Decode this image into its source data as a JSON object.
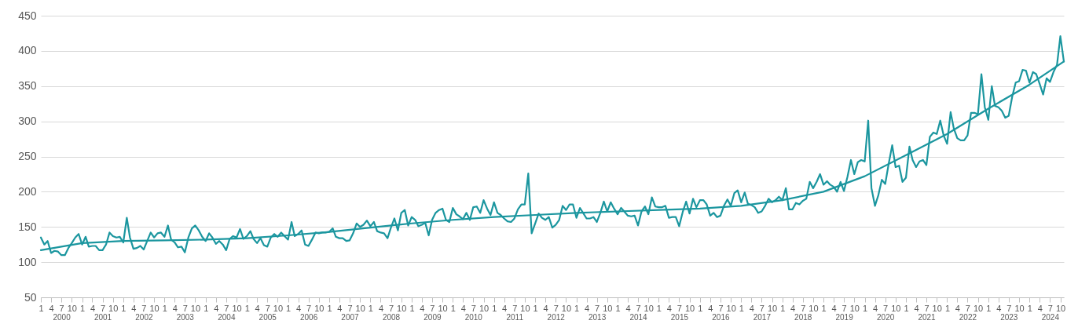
{
  "chart_data": {
    "type": "line",
    "x": [
      "2000-01",
      "2000-02",
      "2000-03",
      "2000-04",
      "2000-05",
      "2000-06",
      "2000-07",
      "2000-08",
      "2000-09",
      "2000-10",
      "2000-11",
      "2000-12",
      "2001-01",
      "2001-02",
      "2001-03",
      "2001-04",
      "2001-05",
      "2001-06",
      "2001-07",
      "2001-08",
      "2001-09",
      "2001-10",
      "2001-11",
      "2001-12",
      "2002-01",
      "2002-02",
      "2002-03",
      "2002-04",
      "2002-05",
      "2002-06",
      "2002-07",
      "2002-08",
      "2002-09",
      "2002-10",
      "2002-11",
      "2002-12",
      "2003-01",
      "2003-02",
      "2003-03",
      "2003-04",
      "2003-05",
      "2003-06",
      "2003-07",
      "2003-08",
      "2003-09",
      "2003-10",
      "2003-11",
      "2003-12",
      "2004-01",
      "2004-02",
      "2004-03",
      "2004-04",
      "2004-05",
      "2004-06",
      "2004-07",
      "2004-08",
      "2004-09",
      "2004-10",
      "2004-11",
      "2004-12",
      "2005-01",
      "2005-02",
      "2005-03",
      "2005-04",
      "2005-05",
      "2005-06",
      "2005-07",
      "2005-08",
      "2005-09",
      "2005-10",
      "2005-11",
      "2005-12",
      "2006-01",
      "2006-02",
      "2006-03",
      "2006-04",
      "2006-05",
      "2006-06",
      "2006-07",
      "2006-08",
      "2006-09",
      "2006-10",
      "2006-11",
      "2006-12",
      "2007-01",
      "2007-02",
      "2007-03",
      "2007-04",
      "2007-05",
      "2007-06",
      "2007-07",
      "2007-08",
      "2007-09",
      "2007-10",
      "2007-11",
      "2007-12",
      "2008-01",
      "2008-02",
      "2008-03",
      "2008-04",
      "2008-05",
      "2008-06",
      "2008-07",
      "2008-08",
      "2008-09",
      "2008-10",
      "2008-11",
      "2008-12",
      "2009-01",
      "2009-02",
      "2009-03",
      "2009-04",
      "2009-05",
      "2009-06",
      "2009-07",
      "2009-08",
      "2009-09",
      "2009-10",
      "2009-11",
      "2009-12",
      "2010-01",
      "2010-02",
      "2010-03",
      "2010-04",
      "2010-05",
      "2010-06",
      "2010-07",
      "2010-08",
      "2010-09",
      "2010-10",
      "2010-11",
      "2010-12",
      "2011-01",
      "2011-02",
      "2011-03",
      "2011-04",
      "2011-05",
      "2011-06",
      "2011-07",
      "2011-08",
      "2011-09",
      "2011-10",
      "2011-11",
      "2011-12",
      "2012-01",
      "2012-02",
      "2012-03",
      "2012-04",
      "2012-05",
      "2012-06",
      "2012-07",
      "2012-08",
      "2012-09",
      "2012-10",
      "2012-11",
      "2012-12",
      "2013-01",
      "2013-02",
      "2013-03",
      "2013-04",
      "2013-05",
      "2013-06",
      "2013-07",
      "2013-08",
      "2013-09",
      "2013-10",
      "2013-11",
      "2013-12",
      "2014-01",
      "2014-02",
      "2014-03",
      "2014-04",
      "2014-05",
      "2014-06",
      "2014-07",
      "2014-08",
      "2014-09",
      "2014-10",
      "2014-11",
      "2014-12",
      "2015-01",
      "2015-02",
      "2015-03",
      "2015-04",
      "2015-05",
      "2015-06",
      "2015-07",
      "2015-08",
      "2015-09",
      "2015-10",
      "2015-11",
      "2015-12",
      "2016-01",
      "2016-02",
      "2016-03",
      "2016-04",
      "2016-05",
      "2016-06",
      "2016-07",
      "2016-08",
      "2016-09",
      "2016-10",
      "2016-11",
      "2016-12",
      "2017-01",
      "2017-02",
      "2017-03",
      "2017-04",
      "2017-05",
      "2017-06",
      "2017-07",
      "2017-08",
      "2017-09",
      "2017-10",
      "2017-11",
      "2017-12",
      "2018-01",
      "2018-02",
      "2018-03",
      "2018-04",
      "2018-05",
      "2018-06",
      "2018-07",
      "2018-08",
      "2018-09",
      "2018-10",
      "2018-11",
      "2018-12",
      "2019-01",
      "2019-02",
      "2019-03",
      "2019-04",
      "2019-05",
      "2019-06",
      "2019-07",
      "2019-08",
      "2019-09",
      "2019-10",
      "2019-11",
      "2019-12",
      "2020-01",
      "2020-02",
      "2020-03",
      "2020-04",
      "2020-05",
      "2020-06",
      "2020-07",
      "2020-08",
      "2020-09",
      "2020-10",
      "2020-11",
      "2020-12",
      "2021-01",
      "2021-02",
      "2021-03",
      "2021-04",
      "2021-05",
      "2021-06",
      "2021-07",
      "2021-08",
      "2021-09",
      "2021-10",
      "2021-11",
      "2021-12",
      "2022-01",
      "2022-02",
      "2022-03",
      "2022-04",
      "2022-05",
      "2022-06",
      "2022-07",
      "2022-08",
      "2022-09",
      "2022-10",
      "2022-11",
      "2022-12",
      "2023-01",
      "2023-02",
      "2023-03",
      "2023-04",
      "2023-05",
      "2023-06",
      "2023-07",
      "2023-08",
      "2023-09",
      "2023-10",
      "2023-11",
      "2023-12",
      "2024-01",
      "2024-02",
      "2024-03",
      "2024-04",
      "2024-05",
      "2024-06",
      "2024-07",
      "2024-08",
      "2024-09",
      "2024-10",
      "2024-11"
    ],
    "series": [
      {
        "color": "#1b969f",
        "values": [
          135,
          125,
          130,
          113,
          116,
          115,
          110,
          110,
          120,
          127,
          135,
          140,
          125,
          136,
          122,
          123,
          123,
          117,
          117,
          125,
          142,
          137,
          135,
          136,
          128,
          163,
          135,
          119,
          120,
          123,
          118,
          130,
          142,
          135,
          141,
          142,
          136,
          152,
          132,
          128,
          121,
          122,
          114,
          135,
          148,
          152,
          145,
          136,
          130,
          141,
          135,
          126,
          130,
          125,
          117,
          133,
          137,
          135,
          147,
          133,
          137,
          144,
          133,
          127,
          134,
          124,
          122,
          135,
          140,
          136,
          142,
          137,
          132,
          157,
          137,
          140,
          145,
          125,
          123,
          132,
          142,
          141,
          142,
          142,
          143,
          148,
          136,
          134,
          134,
          130,
          131,
          141,
          155,
          150,
          153,
          159,
          151,
          157,
          144,
          142,
          141,
          134,
          149,
          162,
          145,
          170,
          174,
          152,
          164,
          160,
          151,
          153,
          156,
          138,
          160,
          170,
          174,
          176,
          160,
          157,
          177,
          168,
          165,
          161,
          170,
          160,
          178,
          179,
          170,
          188,
          176,
          167,
          185,
          170,
          167,
          162,
          158,
          157,
          162,
          175,
          182,
          182,
          226,
          141,
          155,
          169,
          163,
          160,
          164,
          149,
          153,
          160,
          180,
          174,
          182,
          182,
          163,
          177,
          170,
          162,
          162,
          164,
          157,
          170,
          186,
          172,
          185,
          176,
          168,
          177,
          172,
          166,
          165,
          166,
          152,
          172,
          179,
          168,
          192,
          179,
          178,
          178,
          180,
          163,
          164,
          164,
          151,
          171,
          186,
          169,
          190,
          178,
          188,
          188,
          182,
          166,
          170,
          164,
          166,
          180,
          189,
          180,
          198,
          202,
          185,
          199,
          183,
          181,
          178,
          170,
          172,
          180,
          190,
          185,
          188,
          193,
          188,
          205,
          175,
          175,
          184,
          182,
          187,
          190,
          214,
          205,
          214,
          225,
          210,
          215,
          210,
          207,
          200,
          214,
          201,
          221,
          245,
          225,
          242,
          245,
          243,
          301,
          205,
          180,
          195,
          217,
          211,
          240,
          266,
          235,
          237,
          214,
          220,
          264,
          245,
          235,
          243,
          245,
          238,
          278,
          284,
          282,
          301,
          280,
          268,
          313,
          290,
          276,
          273,
          273,
          280,
          312,
          312,
          310,
          367,
          320,
          302,
          350,
          322,
          320,
          315,
          305,
          308,
          335,
          355,
          357,
          373,
          372,
          355,
          370,
          367,
          353,
          338,
          361,
          356,
          370,
          380,
          421,
          385
        ]
      },
      {
        "color": "#1b969f",
        "x": [
          "2000-01",
          "2001-01",
          "2002-01",
          "2003-01",
          "2004-01",
          "2005-01",
          "2006-01",
          "2007-01",
          "2008-01",
          "2009-01",
          "2010-01",
          "2011-01",
          "2012-01",
          "2013-01",
          "2014-01",
          "2015-01",
          "2016-01",
          "2017-01",
          "2018-01",
          "2019-01",
          "2020-01",
          "2021-01",
          "2022-01",
          "2023-01",
          "2024-01",
          "2024-11"
        ],
        "values": [
          117,
          127,
          130,
          131,
          132,
          134,
          138,
          143,
          149,
          155,
          160,
          164,
          167,
          170,
          172,
          174,
          176,
          180,
          188,
          200,
          222,
          252,
          282,
          318,
          352,
          385
        ]
      }
    ],
    "xlim": [
      "2000-01",
      "2024-11"
    ],
    "xticks": [
      {
        "value": "2000-01",
        "label": "1"
      },
      {
        "value": "2000-04",
        "label": "4"
      },
      {
        "value": "2000-07",
        "label": "7"
      },
      {
        "value": "2000-10",
        "label": "10"
      },
      {
        "value": "2001-01",
        "label": "1"
      },
      {
        "value": "2001-04",
        "label": "4"
      },
      {
        "value": "2001-07",
        "label": "7"
      },
      {
        "value": "2001-10",
        "label": "10"
      },
      {
        "value": "2002-01",
        "label": "1"
      },
      {
        "value": "2002-04",
        "label": "4"
      },
      {
        "value": "2002-07",
        "label": "7"
      },
      {
        "value": "2002-10",
        "label": "10"
      },
      {
        "value": "2003-01",
        "label": "1"
      },
      {
        "value": "2003-04",
        "label": "4"
      },
      {
        "value": "2003-07",
        "label": "7"
      },
      {
        "value": "2003-10",
        "label": "10"
      },
      {
        "value": "2004-01",
        "label": "1"
      },
      {
        "value": "2004-04",
        "label": "4"
      },
      {
        "value": "2004-07",
        "label": "7"
      },
      {
        "value": "2004-10",
        "label": "10"
      },
      {
        "value": "2005-01",
        "label": "1"
      },
      {
        "value": "2005-04",
        "label": "4"
      },
      {
        "value": "2005-07",
        "label": "7"
      },
      {
        "value": "2005-10",
        "label": "10"
      },
      {
        "value": "2006-01",
        "label": "1"
      },
      {
        "value": "2006-04",
        "label": "4"
      },
      {
        "value": "2006-07",
        "label": "7"
      },
      {
        "value": "2006-10",
        "label": "10"
      },
      {
        "value": "2007-01",
        "label": "1"
      },
      {
        "value": "2007-04",
        "label": "4"
      },
      {
        "value": "2007-07",
        "label": "7"
      },
      {
        "value": "2007-10",
        "label": "10"
      },
      {
        "value": "2008-01",
        "label": "1"
      },
      {
        "value": "2008-04",
        "label": "4"
      },
      {
        "value": "2008-07",
        "label": "7"
      },
      {
        "value": "2008-10",
        "label": "10"
      },
      {
        "value": "2009-01",
        "label": "1"
      },
      {
        "value": "2009-04",
        "label": "4"
      },
      {
        "value": "2009-07",
        "label": "7"
      },
      {
        "value": "2009-10",
        "label": "10"
      },
      {
        "value": "2010-01",
        "label": "1"
      },
      {
        "value": "2010-04",
        "label": "4"
      },
      {
        "value": "2010-07",
        "label": "7"
      },
      {
        "value": "2010-10",
        "label": "10"
      },
      {
        "value": "2011-01",
        "label": "1"
      },
      {
        "value": "2011-04",
        "label": "4"
      },
      {
        "value": "2011-07",
        "label": "7"
      },
      {
        "value": "2011-10",
        "label": "10"
      },
      {
        "value": "2012-01",
        "label": "1"
      },
      {
        "value": "2012-04",
        "label": "4"
      },
      {
        "value": "2012-07",
        "label": "7"
      },
      {
        "value": "2012-10",
        "label": "10"
      },
      {
        "value": "2013-01",
        "label": "1"
      },
      {
        "value": "2013-04",
        "label": "4"
      },
      {
        "value": "2013-07",
        "label": "7"
      },
      {
        "value": "2013-10",
        "label": "10"
      },
      {
        "value": "2014-01",
        "label": "1"
      },
      {
        "value": "2014-04",
        "label": "4"
      },
      {
        "value": "2014-07",
        "label": "7"
      },
      {
        "value": "2014-10",
        "label": "10"
      },
      {
        "value": "2015-01",
        "label": "1"
      },
      {
        "value": "2015-04",
        "label": "4"
      },
      {
        "value": "2015-07",
        "label": "7"
      },
      {
        "value": "2015-10",
        "label": "10"
      },
      {
        "value": "2016-01",
        "label": "1"
      },
      {
        "value": "2016-04",
        "label": "4"
      },
      {
        "value": "2016-07",
        "label": "7"
      },
      {
        "value": "2016-10",
        "label": "10"
      },
      {
        "value": "2017-01",
        "label": "1"
      },
      {
        "value": "2017-04",
        "label": "4"
      },
      {
        "value": "2017-07",
        "label": "7"
      },
      {
        "value": "2017-10",
        "label": "10"
      },
      {
        "value": "2018-01",
        "label": "1"
      },
      {
        "value": "2018-04",
        "label": "4"
      },
      {
        "value": "2018-07",
        "label": "7"
      },
      {
        "value": "2018-10",
        "label": "10"
      },
      {
        "value": "2019-01",
        "label": "1"
      },
      {
        "value": "2019-04",
        "label": "4"
      },
      {
        "value": "2019-07",
        "label": "7"
      },
      {
        "value": "2019-10",
        "label": "10"
      },
      {
        "value": "2020-01",
        "label": "1"
      },
      {
        "value": "2020-04",
        "label": "4"
      },
      {
        "value": "2020-07",
        "label": "7"
      },
      {
        "value": "2020-10",
        "label": "10"
      },
      {
        "value": "2021-01",
        "label": "1"
      },
      {
        "value": "2021-04",
        "label": "4"
      },
      {
        "value": "2021-07",
        "label": "7"
      },
      {
        "value": "2021-10",
        "label": "10"
      },
      {
        "value": "2022-01",
        "label": "1"
      },
      {
        "value": "2022-04",
        "label": "4"
      },
      {
        "value": "2022-07",
        "label": "7"
      },
      {
        "value": "2022-10",
        "label": "10"
      },
      {
        "value": "2023-01",
        "label": "1"
      },
      {
        "value": "2023-04",
        "label": "4"
      },
      {
        "value": "2023-07",
        "label": "7"
      },
      {
        "value": "2023-10",
        "label": "10"
      },
      {
        "value": "2024-01",
        "label": "1"
      },
      {
        "value": "2024-04",
        "label": "4"
      },
      {
        "value": "2024-07",
        "label": "7"
      },
      {
        "value": "2024-10",
        "label": "10"
      }
    ],
    "x2lim": [
      "2000-01",
      "2024-11"
    ],
    "x2ticks": [
      {
        "value": "2000-07",
        "label": "2000"
      },
      {
        "value": "2001-07",
        "label": "2001"
      },
      {
        "value": "2002-07",
        "label": "2002"
      },
      {
        "value": "2003-07",
        "label": "2003"
      },
      {
        "value": "2004-07",
        "label": "2004"
      },
      {
        "value": "2005-07",
        "label": "2005"
      },
      {
        "value": "2006-07",
        "label": "2006"
      },
      {
        "value": "2007-07",
        "label": "2007"
      },
      {
        "value": "2008-07",
        "label": "2008"
      },
      {
        "value": "2009-07",
        "label": "2009"
      },
      {
        "value": "2010-07",
        "label": "2010"
      },
      {
        "value": "2011-07",
        "label": "2011"
      },
      {
        "value": "2012-07",
        "label": "2012"
      },
      {
        "value": "2013-07",
        "label": "2013"
      },
      {
        "value": "2014-07",
        "label": "2014"
      },
      {
        "value": "2015-07",
        "label": "2015"
      },
      {
        "value": "2016-07",
        "label": "2016"
      },
      {
        "value": "2017-07",
        "label": "2017"
      },
      {
        "value": "2018-07",
        "label": "2018"
      },
      {
        "value": "2019-07",
        "label": "2019"
      },
      {
        "value": "2020-07",
        "label": "2020"
      },
      {
        "value": "2021-07",
        "label": "2021"
      },
      {
        "value": "2022-07",
        "label": "2022"
      },
      {
        "value": "2023-07",
        "label": "2023"
      },
      {
        "value": "2024-07",
        "label": "2024"
      }
    ],
    "ylim": [
      50,
      450
    ],
    "yticks": [
      50,
      100,
      150,
      200,
      250,
      300,
      350,
      400,
      450
    ],
    "grid": "y"
  }
}
